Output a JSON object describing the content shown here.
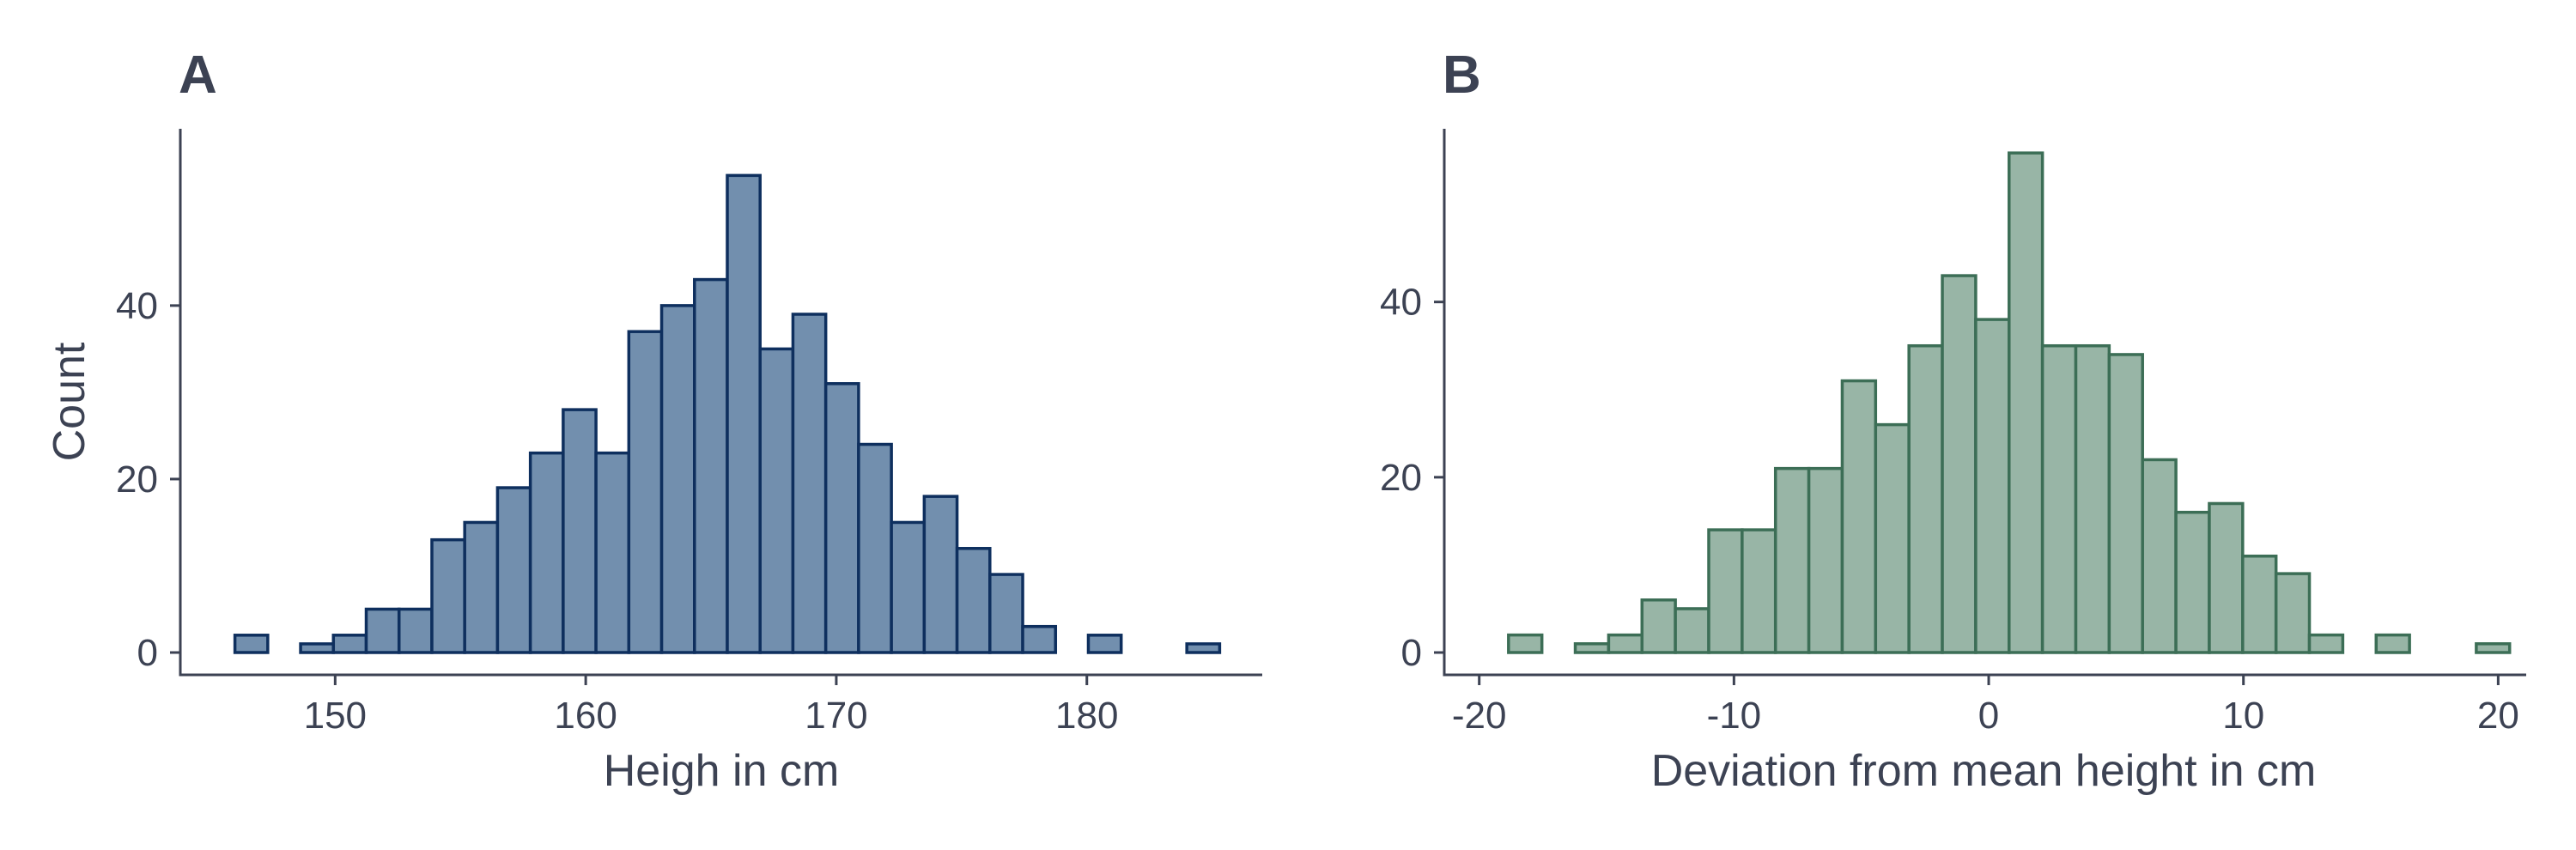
{
  "chart_data": [
    {
      "type": "bar",
      "tag": "A",
      "xlabel": "Heigh in cm",
      "ylabel": "Count",
      "x_ticks": [
        150,
        160,
        170,
        180
      ],
      "y_ticks": [
        0,
        20,
        40
      ],
      "xlim": [
        144.3,
        187.0
      ],
      "ylim": [
        0,
        58.4
      ],
      "bins": {
        "start": 146.0,
        "width": 1.31,
        "counts": [
          2,
          0,
          1,
          2,
          5,
          5,
          13,
          15,
          19,
          23,
          28,
          23,
          37,
          40,
          43,
          55,
          35,
          39,
          31,
          24,
          15,
          18,
          12,
          9,
          3,
          0,
          2,
          0,
          0,
          1
        ]
      },
      "fill_color": "#728fae",
      "edge_color": "#0e2f5e"
    },
    {
      "type": "bar",
      "tag": "B",
      "xlabel": "Deviation from mean height in cm",
      "ylabel": "",
      "x_ticks": [
        -20,
        -10,
        0,
        10,
        20
      ],
      "y_ticks": [
        0,
        20,
        40
      ],
      "xlim": [
        -20.9,
        21.1
      ],
      "ylim": [
        0,
        57.8
      ],
      "bins": {
        "start": -18.85,
        "width": 1.31,
        "counts": [
          2,
          0,
          1,
          2,
          6,
          5,
          14,
          14,
          21,
          21,
          31,
          26,
          35,
          43,
          38,
          57,
          35,
          35,
          34,
          22,
          16,
          17,
          11,
          9,
          2,
          0,
          2,
          0,
          0,
          1
        ]
      },
      "fill_color": "#98b5a6",
      "edge_color": "#3c6e56"
    }
  ]
}
